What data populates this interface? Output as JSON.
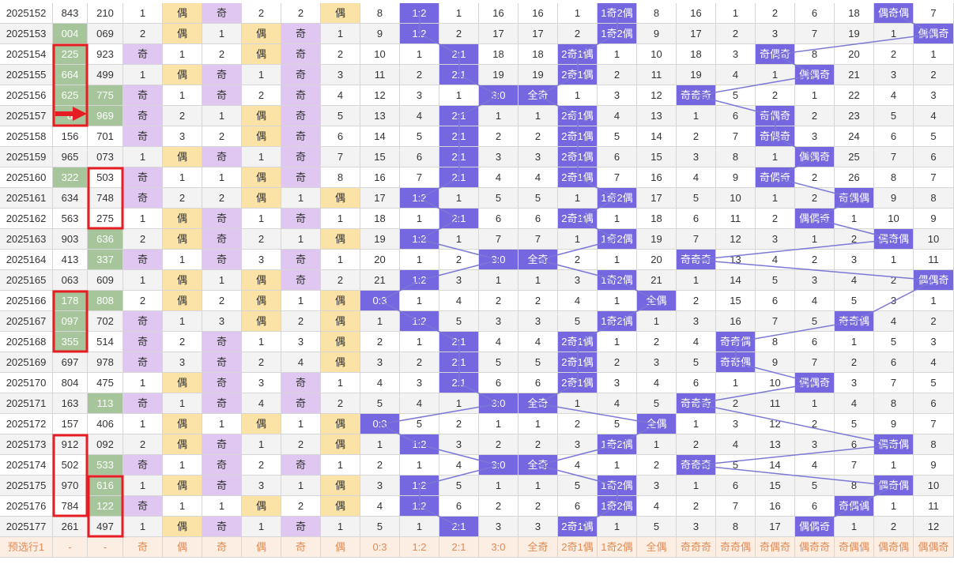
{
  "colors": {
    "yellow": "#fbe2a6",
    "purple": "#e0c7f2",
    "green": "#a7c59a",
    "hit": "#7467df",
    "line": "#7b78d6",
    "red_box": "#e61e24",
    "footer_bg": "#fdeee4",
    "footer_text": "#e28a53"
  },
  "rows": [
    {
      "issue": "2025152",
      "n1": "843",
      "n2": "210",
      "c": [
        "1",
        "偶",
        "奇",
        "2",
        "2",
        "偶",
        "8",
        "1:2",
        "1",
        "16",
        "16",
        "1",
        "1奇2偶",
        "8",
        "16",
        "1",
        "2",
        "6",
        "18",
        "偶奇偶",
        "7"
      ]
    },
    {
      "issue": "2025153",
      "n1": "004",
      "n2": "069",
      "c": [
        "2",
        "偶",
        "1",
        "偶",
        "奇",
        "1",
        "9",
        "1:2",
        "2",
        "17",
        "17",
        "2",
        "1奇2偶",
        "9",
        "17",
        "2",
        "3",
        "7",
        "19",
        "1",
        "偶偶奇"
      ]
    },
    {
      "issue": "2025154",
      "n1": "225",
      "n2": "923",
      "c": [
        "奇",
        "1",
        "2",
        "偶",
        "奇",
        "2",
        "10",
        "1",
        "2:1",
        "18",
        "18",
        "2奇1偶",
        "1",
        "10",
        "18",
        "3",
        "奇偶奇",
        "8",
        "20",
        "2",
        "1"
      ]
    },
    {
      "issue": "2025155",
      "n1": "664",
      "n2": "499",
      "c": [
        "1",
        "偶",
        "奇",
        "1",
        "奇",
        "3",
        "11",
        "2",
        "2:1",
        "19",
        "19",
        "2奇1偶",
        "2",
        "11",
        "19",
        "4",
        "1",
        "偶偶奇",
        "21",
        "3",
        "2"
      ]
    },
    {
      "issue": "2025156",
      "n1": "625",
      "n2": "775",
      "c": [
        "奇",
        "1",
        "奇",
        "2",
        "奇",
        "4",
        "12",
        "3",
        "1",
        "3:0",
        "全奇",
        "1",
        "3",
        "12",
        "奇奇奇",
        "5",
        "2",
        "1",
        "22",
        "4",
        "3"
      ]
    },
    {
      "issue": "2025157",
      "n1": "8",
      "n2": "969",
      "c": [
        "奇",
        "2",
        "1",
        "偶",
        "奇",
        "5",
        "13",
        "4",
        "2:1",
        "1",
        "1",
        "2奇1偶",
        "4",
        "13",
        "1",
        "6",
        "奇偶奇",
        "2",
        "23",
        "5",
        "4"
      ]
    },
    {
      "issue": "2025158",
      "n1": "156",
      "n2": "701",
      "c": [
        "奇",
        "3",
        "2",
        "偶",
        "奇",
        "6",
        "14",
        "5",
        "2:1",
        "2",
        "2",
        "2奇1偶",
        "5",
        "14",
        "2",
        "7",
        "奇偶奇",
        "3",
        "24",
        "6",
        "5"
      ]
    },
    {
      "issue": "2025159",
      "n1": "965",
      "n2": "073",
      "c": [
        "1",
        "偶",
        "奇",
        "1",
        "奇",
        "7",
        "15",
        "6",
        "2:1",
        "3",
        "3",
        "2奇1偶",
        "6",
        "15",
        "3",
        "8",
        "1",
        "偶偶奇",
        "25",
        "7",
        "6"
      ]
    },
    {
      "issue": "2025160",
      "n1": "322",
      "n2": "503",
      "c": [
        "奇",
        "1",
        "1",
        "偶",
        "奇",
        "8",
        "16",
        "7",
        "2:1",
        "4",
        "4",
        "2奇1偶",
        "7",
        "16",
        "4",
        "9",
        "奇偶奇",
        "2",
        "26",
        "8",
        "7"
      ]
    },
    {
      "issue": "2025161",
      "n1": "634",
      "n2": "748",
      "c": [
        "奇",
        "2",
        "2",
        "偶",
        "1",
        "偶",
        "17",
        "1:2",
        "1",
        "5",
        "5",
        "1",
        "1奇2偶",
        "17",
        "5",
        "10",
        "1",
        "2",
        "奇偶偶",
        "9",
        "8"
      ]
    },
    {
      "issue": "2025162",
      "n1": "563",
      "n2": "275",
      "c": [
        "1",
        "偶",
        "奇",
        "1",
        "奇",
        "1",
        "18",
        "1",
        "2:1",
        "6",
        "6",
        "2奇1偶",
        "1",
        "18",
        "6",
        "11",
        "2",
        "偶偶奇",
        "1",
        "10",
        "9"
      ]
    },
    {
      "issue": "2025163",
      "n1": "903",
      "n2": "636",
      "c": [
        "2",
        "偶",
        "奇",
        "2",
        "1",
        "偶",
        "19",
        "1:2",
        "1",
        "7",
        "7",
        "1",
        "1奇2偶",
        "19",
        "7",
        "12",
        "3",
        "1",
        "2",
        "偶奇偶",
        "10"
      ]
    },
    {
      "issue": "2025164",
      "n1": "413",
      "n2": "337",
      "c": [
        "奇",
        "1",
        "奇",
        "3",
        "奇",
        "1",
        "20",
        "1",
        "2",
        "3:0",
        "全奇",
        "2",
        "1",
        "20",
        "奇奇奇",
        "13",
        "4",
        "2",
        "3",
        "1",
        "11"
      ]
    },
    {
      "issue": "2025165",
      "n1": "063",
      "n2": "609",
      "c": [
        "1",
        "偶",
        "1",
        "偶",
        "奇",
        "2",
        "21",
        "1:2",
        "3",
        "1",
        "1",
        "3",
        "1奇2偶",
        "21",
        "1",
        "14",
        "5",
        "3",
        "4",
        "2",
        "偶偶奇"
      ]
    },
    {
      "issue": "2025166",
      "n1": "178",
      "n2": "808",
      "c": [
        "2",
        "偶",
        "2",
        "偶",
        "1",
        "偶",
        "0:3",
        "1",
        "4",
        "2",
        "2",
        "4",
        "1",
        "全偶",
        "2",
        "15",
        "6",
        "4",
        "5",
        "3",
        "1"
      ]
    },
    {
      "issue": "2025167",
      "n1": "097",
      "n2": "702",
      "c": [
        "奇",
        "1",
        "3",
        "偶",
        "2",
        "偶",
        "1",
        "1:2",
        "5",
        "3",
        "3",
        "5",
        "1奇2偶",
        "1",
        "3",
        "16",
        "7",
        "5",
        "奇奇偶",
        "4",
        "2"
      ]
    },
    {
      "issue": "2025168",
      "n1": "355",
      "n2": "514",
      "c": [
        "奇",
        "2",
        "奇",
        "1",
        "3",
        "偶",
        "2",
        "1",
        "2:1",
        "4",
        "4",
        "2奇1偶",
        "1",
        "2",
        "4",
        "奇奇偶",
        "8",
        "6",
        "1",
        "5",
        "3"
      ]
    },
    {
      "issue": "2025169",
      "n1": "697",
      "n2": "978",
      "c": [
        "奇",
        "3",
        "奇",
        "2",
        "4",
        "偶",
        "3",
        "2",
        "2:1",
        "5",
        "5",
        "2奇1偶",
        "2",
        "3",
        "5",
        "奇奇偶",
        "9",
        "7",
        "2",
        "6",
        "4"
      ]
    },
    {
      "issue": "2025170",
      "n1": "804",
      "n2": "475",
      "c": [
        "1",
        "偶",
        "奇",
        "3",
        "奇",
        "1",
        "4",
        "3",
        "2:1",
        "6",
        "6",
        "2奇1偶",
        "3",
        "4",
        "6",
        "1",
        "10",
        "偶偶奇",
        "3",
        "7",
        "5"
      ]
    },
    {
      "issue": "2025171",
      "n1": "163",
      "n2": "113",
      "c": [
        "奇",
        "1",
        "奇",
        "4",
        "奇",
        "2",
        "5",
        "4",
        "1",
        "3:0",
        "全奇",
        "1",
        "4",
        "5",
        "奇奇奇",
        "2",
        "11",
        "1",
        "4",
        "8",
        "6"
      ]
    },
    {
      "issue": "2025172",
      "n1": "157",
      "n2": "406",
      "c": [
        "1",
        "偶",
        "1",
        "偶",
        "1",
        "偶",
        "0:3",
        "5",
        "2",
        "1",
        "1",
        "2",
        "5",
        "全偶",
        "1",
        "3",
        "12",
        "2",
        "5",
        "9",
        "7"
      ]
    },
    {
      "issue": "2025173",
      "n1": "912",
      "n2": "092",
      "c": [
        "2",
        "偶",
        "奇",
        "1",
        "2",
        "偶",
        "1",
        "1:2",
        "3",
        "2",
        "2",
        "3",
        "1奇2偶",
        "1",
        "2",
        "4",
        "13",
        "3",
        "6",
        "偶奇偶",
        "8"
      ]
    },
    {
      "issue": "2025174",
      "n1": "502",
      "n2": "533",
      "c": [
        "奇",
        "1",
        "奇",
        "2",
        "奇",
        "1",
        "2",
        "1",
        "4",
        "3:0",
        "全奇",
        "4",
        "1",
        "2",
        "奇奇奇",
        "5",
        "14",
        "4",
        "7",
        "1",
        "9"
      ]
    },
    {
      "issue": "2025175",
      "n1": "970",
      "n2": "616",
      "c": [
        "1",
        "偶",
        "奇",
        "3",
        "1",
        "偶",
        "3",
        "1:2",
        "5",
        "1",
        "1",
        "5",
        "1奇2偶",
        "3",
        "1",
        "6",
        "15",
        "5",
        "8",
        "偶奇偶",
        "10"
      ]
    },
    {
      "issue": "2025176",
      "n1": "784",
      "n2": "122",
      "c": [
        "奇",
        "1",
        "1",
        "偶",
        "2",
        "偶",
        "4",
        "1:2",
        "6",
        "2",
        "2",
        "6",
        "1奇2偶",
        "4",
        "2",
        "7",
        "16",
        "6",
        "奇偶偶",
        "1",
        "11"
      ]
    },
    {
      "issue": "2025177",
      "n1": "261",
      "n2": "497",
      "c": [
        "1",
        "偶",
        "奇",
        "1",
        "奇",
        "1",
        "5",
        "1",
        "2:1",
        "3",
        "3",
        "2奇1偶",
        "1",
        "5",
        "3",
        "8",
        "17",
        "偶偶奇",
        "1",
        "2",
        "12"
      ]
    }
  ],
  "footer": [
    "预选行1",
    "-",
    "-",
    "奇",
    "偶",
    "奇",
    "偶",
    "奇",
    "偶",
    "0:3",
    "1:2",
    "2:1",
    "3:0",
    "全奇",
    "2奇1偶",
    "1奇2偶",
    "全偶",
    "奇奇奇",
    "奇奇偶",
    "奇偶奇",
    "偶奇奇",
    "奇偶偶",
    "偶奇偶",
    "偶偶奇"
  ],
  "green_n1": [
    "2025153",
    "2025154",
    "2025155",
    "2025156",
    "2025157",
    "2025160",
    "2025166",
    "2025167",
    "2025168"
  ],
  "green_n2": [
    "2025156",
    "2025157",
    "2025163",
    "2025164",
    "2025166",
    "2025171",
    "2025174",
    "2025175",
    "2025176"
  ]
}
